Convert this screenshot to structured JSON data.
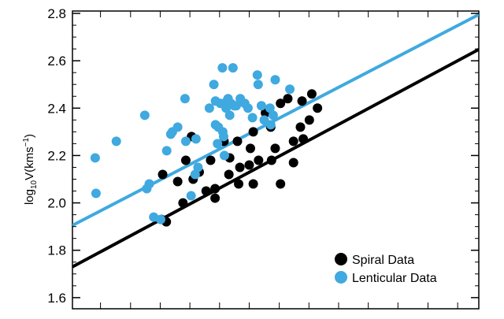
{
  "chart_data": {
    "type": "scatter",
    "title": "",
    "xlabel": "",
    "ylabel": "log10V(kms-1)",
    "ylabel_parts": {
      "pre": "log",
      "sub": "10",
      "mid": "V(kms",
      "sup": "−1",
      "post": ")"
    },
    "xlim": [
      0,
      100
    ],
    "ylim": [
      1.553,
      2.81
    ],
    "yticks": [
      "1.6",
      "1.8",
      "2.0",
      "2.2",
      "2.4",
      "2.6",
      "2.8"
    ],
    "ytick_values": [
      1.6,
      1.8,
      2.0,
      2.2,
      2.4,
      2.6,
      2.8
    ],
    "x_minor_ticks": [
      6.9,
      14.3,
      21.6,
      28.9,
      36.2,
      43.5,
      50.9,
      58.2,
      65.5,
      72.8,
      80.1,
      87.5,
      94.8
    ],
    "grid": false,
    "legend_position": "bottom-right",
    "series": [
      {
        "name": "Spiral Data",
        "color": "#000000",
        "points": [
          [
            22.2,
            2.12
          ],
          [
            21.9,
            1.93
          ],
          [
            23.1,
            1.92
          ],
          [
            25.9,
            2.09
          ],
          [
            27.9,
            2.18
          ],
          [
            27.2,
            2.0
          ],
          [
            29.3,
            2.28
          ],
          [
            29.7,
            2.1
          ],
          [
            31.2,
            2.13
          ],
          [
            32.9,
            2.05
          ],
          [
            34.0,
            2.18
          ],
          [
            35.1,
            2.06
          ],
          [
            35.1,
            2.02
          ],
          [
            37.3,
            2.26
          ],
          [
            38.5,
            2.12
          ],
          [
            38.7,
            2.19
          ],
          [
            40.6,
            2.26
          ],
          [
            40.9,
            2.08
          ],
          [
            41.2,
            2.15
          ],
          [
            43.5,
            2.16
          ],
          [
            43.8,
            2.23
          ],
          [
            44.5,
            2.3
          ],
          [
            44.5,
            2.08
          ],
          [
            45.8,
            2.18
          ],
          [
            47.5,
            2.38
          ],
          [
            48.8,
            2.32
          ],
          [
            49.0,
            2.18
          ],
          [
            49.9,
            2.23
          ],
          [
            51.2,
            2.42
          ],
          [
            51.2,
            2.08
          ],
          [
            53.0,
            2.44
          ],
          [
            54.4,
            2.17
          ],
          [
            54.4,
            2.26
          ],
          [
            56.1,
            2.32
          ],
          [
            56.5,
            2.43
          ],
          [
            56.8,
            2.27
          ],
          [
            58.3,
            2.35
          ],
          [
            58.9,
            2.46
          ],
          [
            60.3,
            2.4
          ]
        ],
        "fit_line": [
          [
            0,
            1.73
          ],
          [
            100,
            2.648
          ]
        ]
      },
      {
        "name": "Lenticular Data",
        "color": "#3fa9e0",
        "points": [
          [
            5.6,
            2.19
          ],
          [
            5.8,
            2.04
          ],
          [
            10.8,
            2.26
          ],
          [
            17.8,
            2.37
          ],
          [
            18.3,
            2.06
          ],
          [
            18.9,
            2.08
          ],
          [
            20.0,
            1.94
          ],
          [
            21.7,
            1.93
          ],
          [
            23.2,
            2.22
          ],
          [
            24.2,
            2.29
          ],
          [
            24.6,
            2.3
          ],
          [
            25.9,
            2.32
          ],
          [
            27.7,
            2.44
          ],
          [
            27.9,
            2.26
          ],
          [
            29.2,
            2.03
          ],
          [
            30.2,
            2.12
          ],
          [
            30.4,
            2.27
          ],
          [
            30.9,
            2.15
          ],
          [
            33.7,
            2.4
          ],
          [
            34.8,
            2.5
          ],
          [
            35.2,
            2.43
          ],
          [
            35.2,
            2.33
          ],
          [
            35.7,
            2.25
          ],
          [
            35.9,
            2.32
          ],
          [
            36.4,
            2.42
          ],
          [
            36.9,
            2.57
          ],
          [
            37.0,
            2.3
          ],
          [
            37.2,
            2.28
          ],
          [
            37.4,
            2.2
          ],
          [
            37.8,
            2.4
          ],
          [
            38.0,
            2.43
          ],
          [
            38.3,
            2.44
          ],
          [
            38.7,
            2.37
          ],
          [
            39.0,
            2.42
          ],
          [
            39.5,
            2.57
          ],
          [
            39.8,
            2.41
          ],
          [
            40.3,
            2.41
          ],
          [
            41.3,
            2.44
          ],
          [
            42.4,
            2.42
          ],
          [
            43.2,
            2.4
          ],
          [
            44.3,
            2.36
          ],
          [
            45.5,
            2.54
          ],
          [
            45.7,
            2.5
          ],
          [
            46.5,
            2.41
          ],
          [
            47.2,
            2.35
          ],
          [
            48.6,
            2.4
          ],
          [
            48.8,
            2.33
          ],
          [
            49.4,
            2.37
          ],
          [
            49.9,
            2.52
          ],
          [
            53.5,
            2.48
          ]
        ],
        "fit_line": [
          [
            0,
            1.905
          ],
          [
            100,
            2.795
          ]
        ]
      }
    ]
  }
}
